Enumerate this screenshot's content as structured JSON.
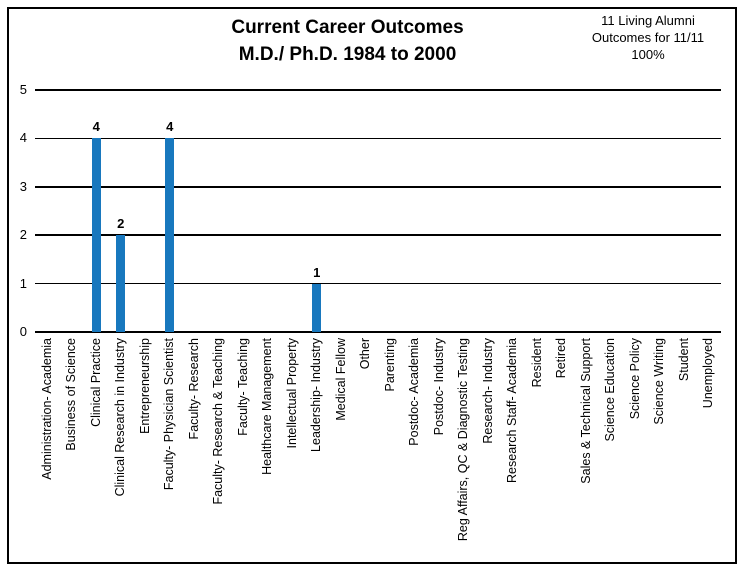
{
  "title": {
    "line1": "Current Career Outcomes",
    "line2": "M.D./ Ph.D. 1984 to 2000"
  },
  "annotation": {
    "line1": "11 Living Alumni",
    "line2": "Outcomes for 11/11",
    "line3": "100%"
  },
  "colors": {
    "bar": "#1878be",
    "grid": "#000000",
    "text": "#000000",
    "frame": "#000000"
  },
  "chart_data": {
    "type": "bar",
    "title": "Current Career Outcomes M.D./ Ph.D. 1984 to 2000",
    "annotation": "11 Living Alumni Outcomes for 11/11 100%",
    "categories": [
      "Administration- Academia",
      "Business of Science",
      "Clinical Practice",
      "Clinical Research in Industry",
      "Entrepreneurship",
      "Faculty- Physician Scientist",
      "Faculty- Research",
      "Faculty- Research & Teaching",
      "Faculty- Teaching",
      "Healthcare Management",
      "Intellectual Property",
      "Leadership- Industry",
      "Medical Fellow",
      "Other",
      "Parenting",
      "Postdoc- Academia",
      "Postdoc- Industry",
      "Reg Affairs, QC & Diagnostic Testing",
      "Research- Industry",
      "Research Staff- Academia",
      "Resident",
      "Retired",
      "Sales & Technical Support",
      "Science Education",
      "Science Policy",
      "Science Writing",
      "Student",
      "Unemployed"
    ],
    "values": [
      0,
      0,
      4,
      2,
      0,
      4,
      0,
      0,
      0,
      0,
      0,
      1,
      0,
      0,
      0,
      0,
      0,
      0,
      0,
      0,
      0,
      0,
      0,
      0,
      0,
      0,
      0,
      0
    ],
    "xlabel": "",
    "ylabel": "",
    "ylim": [
      0,
      5
    ],
    "yticks": [
      0,
      1,
      2,
      3,
      4,
      5
    ],
    "grid": "horizontal",
    "legend": "none",
    "bar_color": "#1878be"
  }
}
